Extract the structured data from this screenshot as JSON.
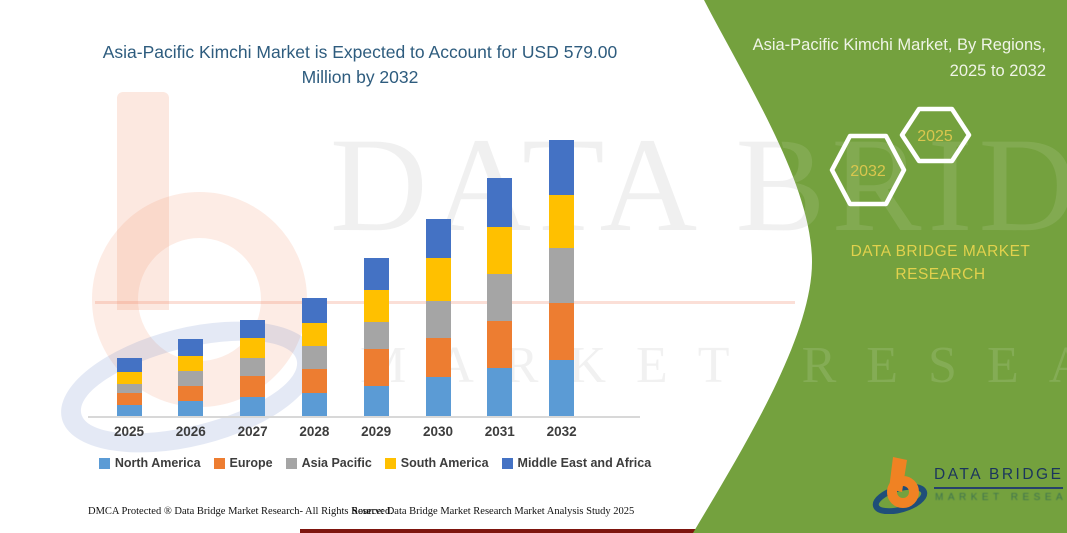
{
  "title": "Asia-Pacific Kimchi Market is Expected to Account for USD 579.00 Million by 2032",
  "chart_data": {
    "type": "bar",
    "stacked": true,
    "unit": "USD Million",
    "categories": [
      "2025",
      "2026",
      "2027",
      "2028",
      "2029",
      "2030",
      "2031",
      "2032"
    ],
    "series": [
      {
        "name": "North America",
        "color": "#5B9BD5",
        "values": [
          24,
          31,
          40,
          48,
          63,
          81,
          100,
          118
        ]
      },
      {
        "name": "Europe",
        "color": "#ED7D31",
        "values": [
          24,
          31,
          43,
          50,
          77,
          82,
          99,
          119
        ]
      },
      {
        "name": "Asia Pacific",
        "color": "#A5A5A5",
        "values": [
          20,
          33,
          39,
          49,
          58,
          78,
          100,
          115
        ]
      },
      {
        "name": "South America",
        "color": "#FFC000",
        "values": [
          25,
          31,
          41,
          49,
          66,
          91,
          98,
          112
        ]
      },
      {
        "name": "Middle East and Africa",
        "color": "#4472C4",
        "values": [
          28,
          35,
          39,
          51,
          68,
          82,
          102,
          115
        ]
      }
    ],
    "totals": [
      121,
      161,
      202,
      247,
      332,
      414,
      499,
      579
    ],
    "ylim": [
      0,
      600
    ],
    "y_axis_visible": false,
    "grid": false,
    "legend_position": "bottom"
  },
  "watermark": {
    "line1": "DATA BRIDGE",
    "line2": "MARKET RESEARCH"
  },
  "side_panel": {
    "heading": "Asia-Pacific Kimchi Market, By Regions, 2025 to 2032",
    "hexagons": [
      {
        "label": "2032"
      },
      {
        "label": "2025"
      }
    ],
    "brand": "DATA BRIDGE MARKET RESEARCH",
    "colors": {
      "background": "#74A13E",
      "accent_text": "#E1D14D",
      "outline": "#FFFFFF"
    }
  },
  "footer": {
    "dmca": "DMCA Protected ® Data Bridge Market Research-  All Rights Reserved.",
    "source": "Source: Data Bridge Market Research  Market Analysis Study 2025"
  },
  "brand_logo": {
    "title": "DATA BRIDGE",
    "subtitle": "MARKET RESEARCH"
  },
  "theme": {
    "title_color": "#2E5C7E",
    "axis_label_color": "#3D3D3D"
  }
}
